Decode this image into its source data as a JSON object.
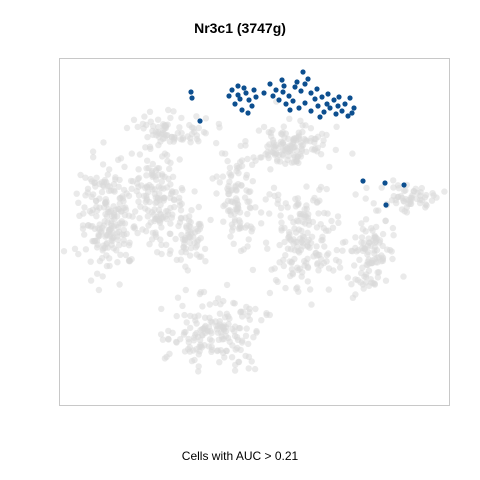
{
  "chart_data": {
    "type": "scatter",
    "title": "Nr3c1 (3747g)",
    "xlabel": "Cells with AUC > 0.21",
    "ylabel": "",
    "grid": false,
    "legend": "none",
    "colors": {
      "background_cells": "#d9d9d9",
      "high_auc_cells": "#0d4f8f",
      "panel_border": "#c8c8c8"
    },
    "series": [
      {
        "name": "",
        "role": "background",
        "regions": [
          {
            "center": [
              108,
              218
            ],
            "spread": [
              24,
              48
            ],
            "n": 200
          },
          {
            "center": [
              158,
              198
            ],
            "spread": [
              22,
              40
            ],
            "n": 150
          },
          {
            "center": [
              190,
              235
            ],
            "spread": [
              16,
              28
            ],
            "n": 60
          },
          {
            "center": [
              238,
              198
            ],
            "spread": [
              16,
              36
            ],
            "n": 95
          },
          {
            "center": [
              288,
              145
            ],
            "spread": [
              34,
              18
            ],
            "n": 130
          },
          {
            "center": [
              300,
              240
            ],
            "spread": [
              30,
              46
            ],
            "n": 170
          },
          {
            "center": [
              215,
              332
            ],
            "spread": [
              40,
              30
            ],
            "n": 170
          },
          {
            "center": [
              372,
              252
            ],
            "spread": [
              20,
              34
            ],
            "n": 110
          },
          {
            "center": [
              410,
              198
            ],
            "spread": [
              22,
              10
            ],
            "n": 55
          },
          {
            "center": [
              170,
              130
            ],
            "spread": [
              30,
              14
            ],
            "n": 70
          }
        ]
      },
      {
        "name": "",
        "role": "highlighted",
        "points": [
          [
            232,
            90
          ],
          [
            238,
            95
          ],
          [
            244,
            88
          ],
          [
            249,
            100
          ],
          [
            235,
            104
          ],
          [
            242,
            110
          ],
          [
            252,
            106
          ],
          [
            229,
            96
          ],
          [
            246,
            93
          ],
          [
            256,
            97
          ],
          [
            240,
            99
          ],
          [
            248,
            113
          ],
          [
            238,
            86
          ],
          [
            254,
            90
          ],
          [
            270,
            84
          ],
          [
            276,
            90
          ],
          [
            283,
            92
          ],
          [
            289,
            96
          ],
          [
            295,
            87
          ],
          [
            301,
            91
          ],
          [
            305,
            84
          ],
          [
            311,
            93
          ],
          [
            317,
            89
          ],
          [
            322,
            97
          ],
          [
            328,
            94
          ],
          [
            334,
            100
          ],
          [
            339,
            97
          ],
          [
            345,
            104
          ],
          [
            350,
            98
          ],
          [
            354,
            108
          ],
          [
            279,
            100
          ],
          [
            286,
            104
          ],
          [
            293,
            101
          ],
          [
            299,
            108
          ],
          [
            305,
            103
          ],
          [
            311,
            111
          ],
          [
            318,
            106
          ],
          [
            324,
            112
          ],
          [
            330,
            108
          ],
          [
            336,
            114
          ],
          [
            342,
            111
          ],
          [
            348,
            116
          ],
          [
            273,
            96
          ],
          [
            284,
            86
          ],
          [
            297,
            82
          ],
          [
            308,
            79
          ],
          [
            303,
            72
          ],
          [
            315,
            99
          ],
          [
            327,
            104
          ],
          [
            290,
            110
          ],
          [
            320,
            117
          ],
          [
            338,
            106
          ],
          [
            352,
            113
          ],
          [
            264,
            93
          ],
          [
            282,
            80
          ],
          [
            191,
            92
          ],
          [
            192,
            98
          ],
          [
            200,
            121
          ],
          [
            363,
            181
          ],
          [
            385,
            183
          ],
          [
            404,
            185
          ],
          [
            386,
            205
          ]
        ]
      }
    ]
  }
}
